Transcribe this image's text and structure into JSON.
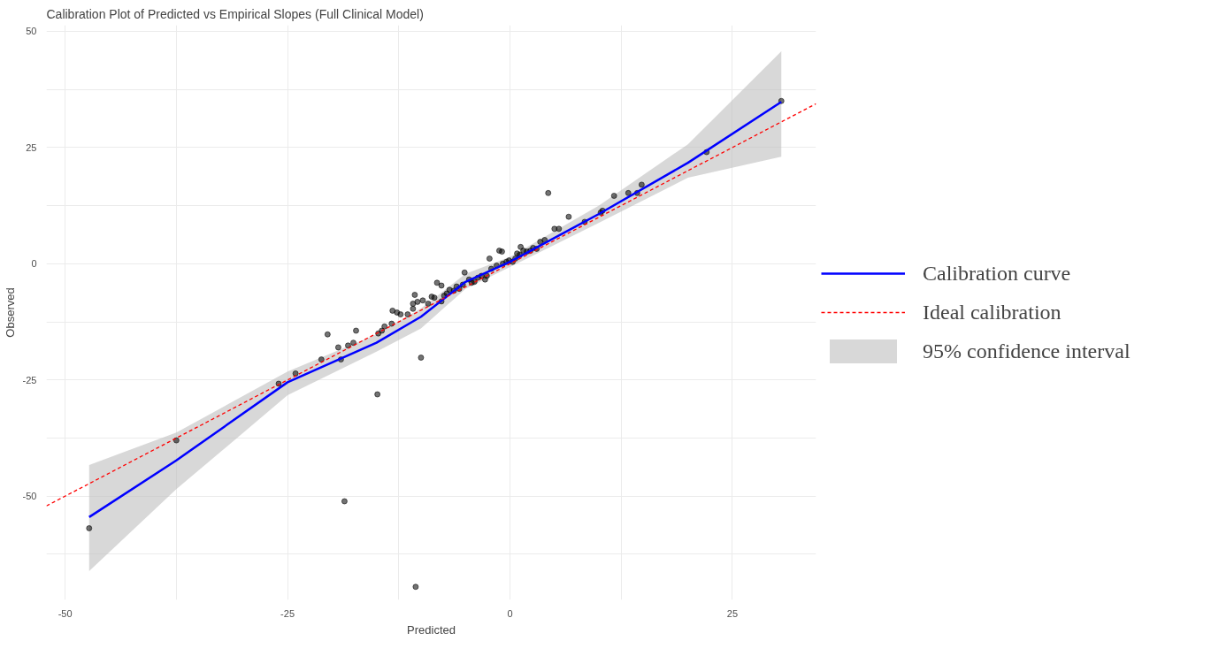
{
  "chart_data": {
    "type": "scatter",
    "title": "Calibration Plot of Predicted vs Empirical Slopes (Full Clinical Model)",
    "xlabel": "Predicted",
    "ylabel": "Observed",
    "xlim": [
      -52.1,
      34.4
    ],
    "ylim": [
      -72.3,
      51.3
    ],
    "xticks": [
      -50,
      {
        "value": -37.5,
        "label": null
      },
      -25,
      {
        "value": -12.5,
        "label": null
      },
      0,
      {
        "value": 12.5,
        "label": null
      },
      25
    ],
    "yticks": [
      {
        "value": -62.5,
        "label": null
      },
      -50,
      {
        "value": -37.5,
        "label": null
      },
      -25,
      {
        "value": -12.5,
        "label": null
      },
      0,
      {
        "value": 12.5,
        "label": null
      },
      25,
      {
        "value": 37.5,
        "label": null
      },
      50
    ],
    "grid": true,
    "legend": "right",
    "series": [
      {
        "name": "95% confidence interval",
        "type": "area",
        "color": "#bebebe",
        "x": [
          -47.3,
          -37.5,
          -25,
          -15,
          -10,
          -5,
          0,
          10,
          20,
          30.5
        ],
        "values": [
          null,
          null,
          null,
          null,
          null,
          null,
          null,
          null,
          null,
          null
        ],
        "lower": [
          -66.1,
          -48.5,
          -28.3,
          -18.9,
          -13.9,
          -5.4,
          -0.7,
          8.8,
          18.5,
          23.0
        ],
        "upper": [
          -43.3,
          -36.3,
          -23.2,
          -15.2,
          -9.6,
          -2.2,
          1.5,
          12.5,
          25.7,
          45.7
        ]
      },
      {
        "color": "#000000",
        "marker": "circle",
        "x": [
          -47.3,
          -37.5,
          -18.6,
          -10.6,
          -14.9,
          -10.0,
          -26.0,
          -24.1,
          -21.2,
          -20.5,
          -19.0,
          -19.3,
          -18.2,
          -17.3,
          -17.6,
          -14.8,
          -14.4,
          -14.1,
          -13.3,
          -13.2,
          -12.7,
          -12.3,
          -11.5,
          -10.9,
          -10.7,
          -10.9,
          -10.4,
          -9.8,
          -9.2,
          -8.8,
          -8.5,
          -8.2,
          -7.7,
          -7.7,
          -7.4,
          -7.1,
          -6.8,
          -6.3,
          -6.0,
          -5.7,
          -5.3,
          -5.1,
          -4.6,
          -4.3,
          -4.0,
          -3.6,
          -3.2,
          -2.8,
          -2.6,
          -2.3,
          -2.1,
          -1.5,
          -1.2,
          -0.9,
          -0.8,
          -0.4,
          -0.1,
          0.3,
          0.6,
          0.8,
          1.1,
          1.2,
          1.5,
          1.9,
          2.3,
          2.6,
          3.0,
          3.4,
          3.9,
          4.3,
          5.0,
          5.5,
          6.6,
          8.4,
          10.2,
          10.4,
          11.7,
          13.3,
          14.3,
          14.8,
          22.1,
          30.5
        ],
        "values": [
          -56.9,
          -38.0,
          -51.1,
          -69.5,
          -28.1,
          -20.2,
          -25.8,
          -23.6,
          -20.6,
          -15.2,
          -20.6,
          -18.0,
          -17.6,
          -14.4,
          -17.0,
          -15.0,
          -14.4,
          -13.5,
          -12.9,
          -10.1,
          -10.5,
          -10.9,
          -10.9,
          -9.7,
          -6.7,
          -8.6,
          -8.2,
          -7.9,
          -8.6,
          -7.1,
          -7.3,
          -4.1,
          -4.7,
          -8.1,
          -6.9,
          -6.4,
          -5.6,
          -5.8,
          -4.9,
          -5.4,
          -4.5,
          -1.9,
          -3.4,
          -4.1,
          -3.9,
          -3.0,
          -2.6,
          -3.4,
          -2.6,
          1.1,
          -1.1,
          -0.4,
          2.8,
          2.6,
          0.0,
          0.4,
          0.7,
          0.4,
          1.1,
          2.2,
          1.9,
          3.6,
          2.8,
          2.6,
          2.8,
          3.4,
          3.2,
          4.7,
          5.1,
          15.2,
          7.5,
          7.5,
          10.1,
          9.0,
          11.0,
          11.4,
          14.6,
          15.2,
          15.2,
          17.0,
          24.0,
          35.0
        ]
      },
      {
        "name": "Calibration curve",
        "type": "line",
        "color": "#0000ff",
        "line_style": "solid",
        "x": [
          -47.3,
          -37.5,
          -25,
          -15,
          -10,
          -5,
          0,
          10,
          20,
          30.5
        ],
        "values": [
          -54.5,
          -42.3,
          -25.5,
          -17.0,
          -11.4,
          -3.9,
          0.4,
          10.7,
          21.7,
          34.8
        ]
      },
      {
        "name": "Ideal calibration",
        "type": "line",
        "color": "#ff0000",
        "line_style": "dashed",
        "x": [
          -52.1,
          34.4
        ],
        "values": [
          -52.1,
          34.4
        ]
      }
    ]
  }
}
